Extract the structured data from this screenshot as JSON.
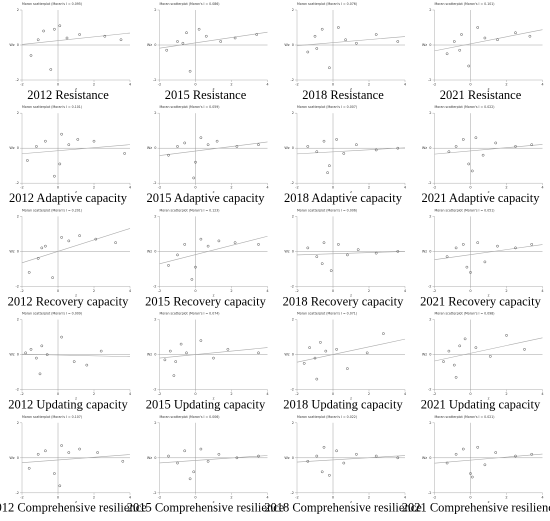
{
  "chart_data": [
    {
      "type": "scatter",
      "title": "Moran scatterplot (Moran's I = 0.095)",
      "caption": "2012 Resistance",
      "xlabel": "z",
      "ylabel": "Wz",
      "x": [
        -1.5,
        -1.1,
        -0.8,
        -0.4,
        0.1,
        0.5,
        1.2,
        2.6,
        3.5,
        -0.2
      ],
      "y": [
        -0.6,
        0.3,
        0.8,
        -1.4,
        1.1,
        0.4,
        0.6,
        0.5,
        0.3,
        0.9
      ],
      "xlim": [
        -2,
        4
      ],
      "ylim": [
        -2,
        2
      ],
      "xticks": [
        -2,
        0,
        2,
        4
      ],
      "yticks": [
        -2,
        0,
        2
      ]
    },
    {
      "type": "scatter",
      "title": "Moran scatterplot (Moran's I = 0.086)",
      "caption": "2015 Resistance",
      "xlabel": "z",
      "ylabel": "Wz",
      "x": [
        -1.6,
        -1.0,
        -0.5,
        -0.3,
        0.2,
        0.6,
        1.4,
        2.2,
        3.4,
        -0.7
      ],
      "y": [
        -0.3,
        0.2,
        0.7,
        -1.5,
        0.9,
        0.5,
        0.2,
        0.4,
        0.6,
        0.1
      ],
      "xlim": [
        -2,
        4
      ],
      "ylim": [
        -2,
        2
      ],
      "xticks": [
        -2,
        0,
        2,
        4
      ],
      "yticks": [
        -2,
        0,
        2
      ]
    },
    {
      "type": "scatter",
      "title": "Moran scatterplot (Moran's I = 0.076)",
      "caption": "2018 Resistance",
      "xlabel": "z",
      "ylabel": "Wz",
      "x": [
        -1.4,
        -1.0,
        -0.6,
        -0.2,
        0.3,
        0.7,
        1.3,
        2.4,
        3.6,
        -0.9
      ],
      "y": [
        -0.4,
        0.5,
        0.9,
        -1.3,
        1.0,
        0.3,
        0.1,
        0.6,
        0.2,
        -0.2
      ],
      "xlim": [
        -2,
        4
      ],
      "ylim": [
        -2,
        2
      ],
      "xticks": [
        -2,
        0,
        2,
        4
      ],
      "yticks": [
        -2,
        0,
        2
      ]
    },
    {
      "type": "scatter",
      "title": "Moran scatterplot (Moran's I = 0.101)",
      "caption": "2021 Resistance",
      "xlabel": "z",
      "ylabel": "Wz",
      "x": [
        -1.3,
        -0.9,
        -0.5,
        -0.1,
        0.4,
        0.8,
        1.5,
        2.5,
        3.3,
        -0.6
      ],
      "y": [
        -0.5,
        0.2,
        0.6,
        -1.2,
        1.0,
        0.4,
        0.3,
        0.7,
        0.5,
        -0.3
      ],
      "xlim": [
        -2,
        4
      ],
      "ylim": [
        -2,
        2
      ],
      "xticks": [
        -2,
        0,
        2,
        4
      ],
      "yticks": [
        -2,
        0,
        2
      ]
    },
    {
      "type": "scatter",
      "title": "Moran scatterplot (Moran's I = 0.101)",
      "caption": "2012 Adaptive capacity",
      "xlabel": "z",
      "ylabel": "Wz",
      "x": [
        -1.7,
        -1.2,
        -0.7,
        -0.2,
        0.2,
        0.6,
        1.1,
        2.0,
        3.7,
        0.1
      ],
      "y": [
        -0.7,
        0.1,
        0.4,
        -1.6,
        0.8,
        0.2,
        0.5,
        0.4,
        -0.3,
        -0.9
      ],
      "xlim": [
        -2,
        4
      ],
      "ylim": [
        -2,
        2
      ],
      "xticks": [
        -2,
        0,
        2,
        4
      ],
      "yticks": [
        -2,
        0,
        2
      ]
    },
    {
      "type": "scatter",
      "title": "Moran scatterplot (Moran's I = 0.059)",
      "caption": "2015 Adaptive capacity",
      "xlabel": "z",
      "ylabel": "Wz",
      "x": [
        -1.5,
        -1.0,
        -0.6,
        -0.1,
        0.3,
        0.7,
        1.2,
        2.3,
        3.5,
        0.0
      ],
      "y": [
        -0.4,
        0.1,
        0.3,
        -1.7,
        0.6,
        0.2,
        0.4,
        0.1,
        0.2,
        -0.8
      ],
      "xlim": [
        -2,
        4
      ],
      "ylim": [
        -2,
        2
      ],
      "xticks": [
        -2,
        0,
        2,
        4
      ],
      "yticks": [
        -2,
        0,
        2
      ]
    },
    {
      "type": "scatter",
      "title": "Moran scatterplot (Moran's I = 0.007)",
      "caption": "2018 Adaptive capacity",
      "xlabel": "z",
      "ylabel": "Wz",
      "x": [
        -1.4,
        -0.9,
        -0.5,
        -0.2,
        0.2,
        0.6,
        1.3,
        2.4,
        3.6,
        -0.3
      ],
      "y": [
        0.1,
        -0.2,
        0.4,
        -1.0,
        0.5,
        -0.3,
        0.2,
        -0.1,
        0.0,
        -1.4
      ],
      "xlim": [
        -2,
        4
      ],
      "ylim": [
        -2,
        2
      ],
      "xticks": [
        -2,
        0,
        2,
        4
      ],
      "yticks": [
        -2,
        0,
        2
      ]
    },
    {
      "type": "scatter",
      "title": "Moran scatterplot (Moran's I = 0.022)",
      "caption": "2021 Adaptive capacity",
      "xlabel": "z",
      "ylabel": "Wz",
      "x": [
        -1.2,
        -0.8,
        -0.4,
        -0.1,
        0.3,
        0.7,
        1.4,
        2.5,
        3.4,
        0.1
      ],
      "y": [
        -0.2,
        0.1,
        0.5,
        -0.9,
        0.6,
        -0.4,
        0.3,
        0.1,
        0.2,
        -1.3
      ],
      "xlim": [
        -2,
        4
      ],
      "ylim": [
        -2,
        2
      ],
      "xticks": [
        -2,
        0,
        2,
        4
      ],
      "yticks": [
        -2,
        0,
        2
      ]
    },
    {
      "type": "scatter",
      "title": "Moran scatterplot (Moran's I = 0.201)",
      "caption": "2012 Recovery capacity",
      "xlabel": "z",
      "ylabel": "Wz",
      "x": [
        -1.6,
        -1.1,
        -0.7,
        -0.3,
        0.2,
        0.6,
        1.2,
        2.1,
        3.2,
        -0.9
      ],
      "y": [
        -1.2,
        -0.4,
        0.3,
        -1.5,
        0.8,
        0.6,
        0.9,
        0.7,
        0.5,
        0.2
      ],
      "xlim": [
        -2,
        4
      ],
      "ylim": [
        -2,
        2
      ],
      "xticks": [
        -2,
        0,
        2,
        4
      ],
      "yticks": [
        -2,
        0,
        2
      ]
    },
    {
      "type": "scatter",
      "title": "Moran scatterplot (Moran's I = 0.123)",
      "caption": "2015 Recovery capacity",
      "xlabel": "z",
      "ylabel": "Wz",
      "x": [
        -1.5,
        -1.0,
        -0.6,
        -0.2,
        0.3,
        0.7,
        1.3,
        2.2,
        3.5,
        0.0
      ],
      "y": [
        -0.8,
        -0.2,
        0.4,
        -1.6,
        0.7,
        0.3,
        0.6,
        0.5,
        0.4,
        -0.9
      ],
      "xlim": [
        -2,
        4
      ],
      "ylim": [
        -2,
        2
      ],
      "xticks": [
        -2,
        0,
        2,
        4
      ],
      "yticks": [
        -2,
        0,
        2
      ]
    },
    {
      "type": "scatter",
      "title": "Moran scatterplot (Moran's I = 0.006)",
      "caption": "2018 Recovery capacity",
      "xlabel": "z",
      "ylabel": "Wz",
      "x": [
        -1.4,
        -0.9,
        -0.5,
        -0.1,
        0.3,
        0.8,
        1.4,
        2.4,
        3.6,
        -0.6
      ],
      "y": [
        0.2,
        -0.3,
        0.5,
        -1.1,
        0.4,
        -0.2,
        0.1,
        -0.1,
        0.0,
        -0.7
      ],
      "xlim": [
        -2,
        4
      ],
      "ylim": [
        -2,
        2
      ],
      "xticks": [
        -2,
        0,
        2,
        4
      ],
      "yticks": [
        -2,
        0,
        2
      ]
    },
    {
      "type": "scatter",
      "title": "Moran scatterplot (Moran's I = 0.051)",
      "caption": "2021 Recovery capacity",
      "xlabel": "z",
      "ylabel": "Wz",
      "x": [
        -1.3,
        -0.8,
        -0.4,
        0.0,
        0.4,
        0.8,
        1.5,
        2.5,
        3.4,
        -0.2
      ],
      "y": [
        -0.3,
        0.2,
        0.4,
        -1.2,
        0.5,
        -0.6,
        0.3,
        0.2,
        0.4,
        -0.9
      ],
      "xlim": [
        -2,
        4
      ],
      "ylim": [
        -2,
        2
      ],
      "xticks": [
        -2,
        0,
        2,
        4
      ],
      "yticks": [
        -2,
        0,
        2
      ]
    },
    {
      "type": "scatter",
      "title": "Moran scatterplot (Moran's I = 0.009)",
      "caption": "2012 Updating capacity",
      "xlabel": "z",
      "ylabel": "Wz",
      "x": [
        -1.8,
        -1.5,
        -1.2,
        -0.9,
        -0.6,
        0.2,
        0.9,
        1.6,
        2.4,
        -1.0
      ],
      "y": [
        0.1,
        0.3,
        -0.2,
        0.5,
        0.0,
        1.0,
        -0.4,
        -0.6,
        0.2,
        -1.1
      ],
      "xlim": [
        -2,
        4
      ],
      "ylim": [
        -2,
        2
      ],
      "xticks": [
        -2,
        0,
        2,
        4
      ],
      "yticks": [
        -2,
        0,
        2
      ]
    },
    {
      "type": "scatter",
      "title": "Moran scatterplot (Moran's I = 0.074)",
      "caption": "2015 Updating capacity",
      "xlabel": "z",
      "ylabel": "Wz",
      "x": [
        -1.7,
        -1.4,
        -1.1,
        -0.8,
        -0.5,
        0.3,
        1.0,
        1.8,
        3.5,
        -1.2
      ],
      "y": [
        -0.3,
        0.2,
        -0.4,
        0.6,
        0.1,
        0.8,
        -0.2,
        0.3,
        0.1,
        -1.2
      ],
      "xlim": [
        -2,
        4
      ],
      "ylim": [
        -2,
        2
      ],
      "xticks": [
        -2,
        0,
        2,
        4
      ],
      "yticks": [
        -2,
        0,
        2
      ]
    },
    {
      "type": "scatter",
      "title": "Moran scatterplot (Moran's I = 0.071)",
      "caption": "2018 Updating capacity",
      "xlabel": "z",
      "ylabel": "Wz",
      "x": [
        -1.6,
        -1.3,
        -1.0,
        -0.7,
        -0.4,
        0.2,
        0.8,
        1.9,
        2.8,
        -0.9
      ],
      "y": [
        -0.5,
        0.4,
        -0.2,
        0.7,
        0.2,
        0.3,
        -0.8,
        0.1,
        1.2,
        -1.4
      ],
      "xlim": [
        -2,
        4
      ],
      "ylim": [
        -2,
        2
      ],
      "xticks": [
        -2,
        0,
        2,
        4
      ],
      "yticks": [
        -2,
        0,
        2
      ]
    },
    {
      "type": "scatter",
      "title": "Moran scatterplot (Moran's I = 0.098)",
      "caption": "2021 Updating capacity",
      "xlabel": "z",
      "ylabel": "Wz",
      "x": [
        -1.5,
        -1.2,
        -0.9,
        -0.6,
        -0.3,
        0.3,
        1.1,
        2.0,
        3.0,
        -0.8
      ],
      "y": [
        -0.4,
        0.2,
        -0.6,
        0.5,
        0.9,
        0.4,
        -0.1,
        1.1,
        0.3,
        -1.3
      ],
      "xlim": [
        -2,
        4
      ],
      "ylim": [
        -2,
        2
      ],
      "xticks": [
        -2,
        0,
        2,
        4
      ],
      "yticks": [
        -2,
        0,
        2
      ]
    },
    {
      "type": "scatter",
      "title": "Moran scatterplot (Moran's I = 0.107)",
      "caption": "2012 Comprehensive resilience",
      "xlabel": "z",
      "ylabel": "Wz",
      "x": [
        -1.6,
        -1.1,
        -0.7,
        -0.2,
        0.2,
        0.6,
        1.2,
        2.2,
        3.6,
        0.1
      ],
      "y": [
        -0.6,
        0.2,
        0.4,
        -0.9,
        0.7,
        0.3,
        0.5,
        0.3,
        -0.2,
        -1.6
      ],
      "xlim": [
        -2,
        4
      ],
      "ylim": [
        -2,
        2
      ],
      "xticks": [
        -2,
        0,
        2,
        4
      ],
      "yticks": [
        -2,
        0,
        2
      ]
    },
    {
      "type": "scatter",
      "title": "Moran scatterplot (Moran's I = 0.006)",
      "caption": "2015 Comprehensive resilience",
      "xlabel": "z",
      "ylabel": "Wz",
      "x": [
        -1.5,
        -1.0,
        -0.6,
        -0.1,
        0.3,
        0.7,
        1.3,
        2.3,
        3.5,
        -0.3
      ],
      "y": [
        0.1,
        -0.3,
        0.4,
        -0.8,
        0.5,
        -0.2,
        0.2,
        0.0,
        0.1,
        -1.2
      ],
      "xlim": [
        -2,
        4
      ],
      "ylim": [
        -2,
        2
      ],
      "xticks": [
        -2,
        0,
        2,
        4
      ],
      "yticks": [
        -2,
        0,
        2
      ]
    },
    {
      "type": "scatter",
      "title": "Moran scatterplot (Moran's I = 0.022)",
      "caption": "2018 Comprehensive resilience",
      "xlabel": "z",
      "ylabel": "Wz",
      "x": [
        -1.4,
        -0.9,
        -0.5,
        -0.2,
        0.2,
        0.6,
        1.3,
        2.4,
        3.6,
        -0.6
      ],
      "y": [
        -0.2,
        0.1,
        0.6,
        -1.0,
        0.4,
        -0.3,
        0.2,
        0.1,
        0.0,
        -0.8
      ],
      "xlim": [
        -2,
        4
      ],
      "ylim": [
        -2,
        2
      ],
      "xticks": [
        -2,
        0,
        2,
        4
      ],
      "yticks": [
        -2,
        0,
        2
      ]
    },
    {
      "type": "scatter",
      "title": "Moran scatterplot (Moran's I = 0.021)",
      "caption": "2021 Comprehensive resilience",
      "xlabel": "z",
      "ylabel": "Wz",
      "x": [
        -1.3,
        -0.8,
        -0.4,
        0.0,
        0.4,
        0.8,
        1.4,
        2.5,
        3.4,
        0.1
      ],
      "y": [
        -0.3,
        0.2,
        0.5,
        -0.9,
        0.6,
        -0.4,
        0.3,
        0.1,
        0.2,
        -1.1
      ],
      "xlim": [
        -2,
        4
      ],
      "ylim": [
        -2,
        2
      ],
      "xticks": [
        -2,
        0,
        2,
        4
      ],
      "yticks": [
        -2,
        0,
        2
      ]
    }
  ]
}
